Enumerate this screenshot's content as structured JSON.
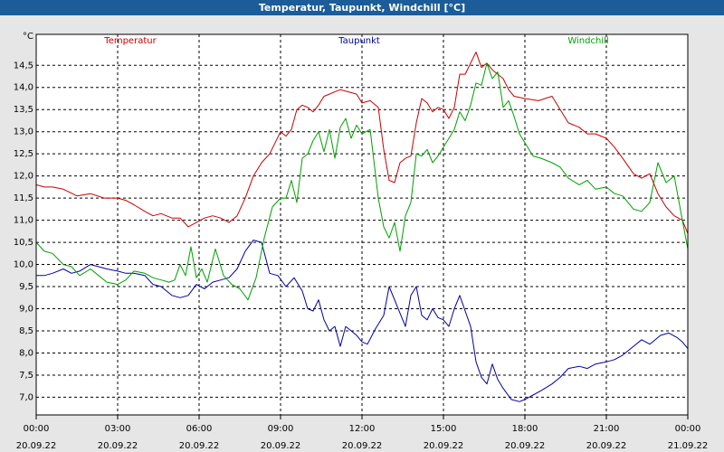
{
  "window": {
    "title": "Temperatur, Taupunkt, Windchill [°C]"
  },
  "chart_data": {
    "type": "line",
    "title": "Temperatur, Taupunkt, Windchill [°C]",
    "ylabel": "°C",
    "xlabel": "",
    "xlim": [
      0,
      24
    ],
    "ylim": [
      6.6,
      15.2
    ],
    "grid": true,
    "legend_position": "top",
    "y_ticks": [
      7.0,
      7.5,
      8.0,
      8.5,
      9.0,
      9.5,
      10.0,
      10.5,
      11.0,
      11.5,
      12.0,
      12.5,
      13.0,
      13.5,
      14.0,
      14.5
    ],
    "y_tick_labels": [
      "7,0",
      "7,5",
      "8,0",
      "8,5",
      "9,0",
      "9,5",
      "10,0",
      "10,5",
      "11,0",
      "11,5",
      "12,0",
      "12,5",
      "13,0",
      "13,5",
      "14,0",
      "14,5"
    ],
    "x_ticks": [
      0,
      3,
      6,
      9,
      12,
      15,
      18,
      21,
      24
    ],
    "x_tick_labels": [
      {
        "time": "00:00",
        "date": "20.09.22"
      },
      {
        "time": "03:00",
        "date": "20.09.22"
      },
      {
        "time": "06:00",
        "date": "20.09.22"
      },
      {
        "time": "09:00",
        "date": "20.09.22"
      },
      {
        "time": "12:00",
        "date": "20.09.22"
      },
      {
        "time": "15:00",
        "date": "20.09.22"
      },
      {
        "time": "18:00",
        "date": "20.09.22"
      },
      {
        "time": "21:00",
        "date": "20.09.22"
      },
      {
        "time": "00:00",
        "date": "21.09.22"
      }
    ],
    "series": [
      {
        "name": "Temperatur",
        "color": "#c80000",
        "x": [
          0,
          0.3,
          0.6,
          1.0,
          1.5,
          2.0,
          2.5,
          3.0,
          3.3,
          3.6,
          4.0,
          4.3,
          4.6,
          5.0,
          5.3,
          5.6,
          5.9,
          6.2,
          6.5,
          6.8,
          7.1,
          7.4,
          7.7,
          8.0,
          8.3,
          8.6,
          9.0,
          9.2,
          9.4,
          9.6,
          9.8,
          10.0,
          10.2,
          10.4,
          10.6,
          10.8,
          11.0,
          11.2,
          11.5,
          11.8,
          12.0,
          12.3,
          12.6,
          12.8,
          13.0,
          13.2,
          13.4,
          13.6,
          13.8,
          14.0,
          14.2,
          14.4,
          14.6,
          14.8,
          15.0,
          15.2,
          15.4,
          15.6,
          15.8,
          16.0,
          16.2,
          16.4,
          16.6,
          16.8,
          17.0,
          17.2,
          17.4,
          17.6,
          18.0,
          18.5,
          19.0,
          19.3,
          19.6,
          20.0,
          20.3,
          20.6,
          21.0,
          21.3,
          21.6,
          22.0,
          22.3,
          22.6,
          22.9,
          23.2,
          23.5,
          23.8,
          24.0
        ],
        "values": [
          11.8,
          11.75,
          11.75,
          11.7,
          11.55,
          11.6,
          11.5,
          11.5,
          11.45,
          11.35,
          11.2,
          11.1,
          11.15,
          11.05,
          11.05,
          10.85,
          10.95,
          11.05,
          11.1,
          11.05,
          10.95,
          11.1,
          11.5,
          12.0,
          12.3,
          12.5,
          13.0,
          12.9,
          13.05,
          13.5,
          13.6,
          13.55,
          13.45,
          13.6,
          13.8,
          13.85,
          13.9,
          13.95,
          13.9,
          13.85,
          13.65,
          13.7,
          13.55,
          12.6,
          11.9,
          11.85,
          12.3,
          12.4,
          12.45,
          13.2,
          13.75,
          13.65,
          13.45,
          13.55,
          13.5,
          13.3,
          13.55,
          14.3,
          14.3,
          14.55,
          14.8,
          14.45,
          14.55,
          14.4,
          14.3,
          14.2,
          13.95,
          13.8,
          13.75,
          13.7,
          13.8,
          13.5,
          13.2,
          13.1,
          12.95,
          12.95,
          12.85,
          12.65,
          12.4,
          12.05,
          11.95,
          12.05,
          11.6,
          11.3,
          11.1,
          11.0,
          10.7
        ]
      },
      {
        "name": "Taupunkt",
        "color": "#0000a0",
        "x": [
          0,
          0.3,
          0.6,
          1.0,
          1.3,
          1.6,
          2.0,
          2.3,
          2.6,
          3.0,
          3.3,
          3.6,
          4.0,
          4.3,
          4.6,
          5.0,
          5.3,
          5.6,
          5.9,
          6.2,
          6.5,
          6.8,
          7.1,
          7.4,
          7.7,
          8.0,
          8.3,
          8.6,
          8.9,
          9.2,
          9.5,
          9.8,
          10.0,
          10.2,
          10.4,
          10.6,
          10.8,
          11.0,
          11.2,
          11.4,
          11.6,
          11.8,
          12.0,
          12.2,
          12.5,
          12.8,
          13.0,
          13.2,
          13.4,
          13.6,
          13.8,
          14.0,
          14.2,
          14.4,
          14.6,
          14.8,
          15.0,
          15.2,
          15.4,
          15.6,
          15.8,
          16.0,
          16.2,
          16.4,
          16.6,
          16.8,
          17.0,
          17.2,
          17.5,
          17.8,
          18.0,
          18.3,
          18.6,
          19.0,
          19.3,
          19.6,
          20.0,
          20.3,
          20.6,
          21.0,
          21.3,
          21.6,
          22.0,
          22.3,
          22.6,
          23.0,
          23.3,
          23.6,
          23.8,
          24.0
        ],
        "values": [
          9.75,
          9.75,
          9.8,
          9.9,
          9.8,
          9.85,
          10.0,
          9.95,
          9.9,
          9.85,
          9.8,
          9.8,
          9.75,
          9.55,
          9.5,
          9.3,
          9.25,
          9.3,
          9.55,
          9.45,
          9.6,
          9.65,
          9.7,
          9.9,
          10.3,
          10.55,
          10.5,
          9.8,
          9.75,
          9.5,
          9.7,
          9.4,
          9.0,
          8.95,
          9.2,
          8.75,
          8.5,
          8.6,
          8.15,
          8.6,
          8.5,
          8.4,
          8.25,
          8.2,
          8.55,
          8.85,
          9.5,
          9.2,
          8.9,
          8.6,
          9.3,
          9.5,
          8.85,
          8.75,
          9.0,
          8.8,
          8.75,
          8.6,
          9.0,
          9.3,
          8.95,
          8.6,
          7.8,
          7.45,
          7.3,
          7.75,
          7.4,
          7.2,
          6.95,
          6.9,
          6.95,
          7.05,
          7.15,
          7.3,
          7.45,
          7.65,
          7.7,
          7.65,
          7.75,
          7.8,
          7.85,
          7.95,
          8.15,
          8.3,
          8.2,
          8.4,
          8.45,
          8.35,
          8.25,
          8.1
        ]
      },
      {
        "name": "Windchill",
        "color": "#00a000",
        "x": [
          0,
          0.3,
          0.6,
          1.0,
          1.3,
          1.6,
          2.0,
          2.3,
          2.6,
          3.0,
          3.3,
          3.6,
          4.0,
          4.3,
          4.6,
          4.9,
          5.1,
          5.3,
          5.5,
          5.7,
          5.9,
          6.1,
          6.3,
          6.6,
          6.9,
          7.2,
          7.5,
          7.8,
          8.1,
          8.4,
          8.7,
          9.0,
          9.2,
          9.4,
          9.6,
          9.8,
          10.0,
          10.2,
          10.4,
          10.6,
          10.8,
          11.0,
          11.2,
          11.4,
          11.6,
          11.8,
          12.0,
          12.3,
          12.6,
          12.8,
          13.0,
          13.2,
          13.4,
          13.6,
          13.8,
          14.0,
          14.2,
          14.4,
          14.6,
          14.8,
          15.0,
          15.2,
          15.4,
          15.6,
          15.8,
          16.0,
          16.2,
          16.4,
          16.6,
          16.8,
          17.0,
          17.2,
          17.4,
          17.6,
          17.8,
          18.0,
          18.3,
          18.6,
          19.0,
          19.3,
          19.6,
          20.0,
          20.3,
          20.6,
          21.0,
          21.3,
          21.6,
          22.0,
          22.3,
          22.6,
          22.9,
          23.2,
          23.5,
          23.8,
          24.0
        ],
        "values": [
          10.5,
          10.3,
          10.25,
          10.0,
          9.95,
          9.75,
          9.9,
          9.75,
          9.6,
          9.55,
          9.65,
          9.85,
          9.8,
          9.7,
          9.65,
          9.6,
          9.65,
          10.0,
          9.75,
          10.4,
          9.7,
          9.9,
          9.6,
          10.35,
          9.75,
          9.55,
          9.45,
          9.2,
          9.7,
          10.6,
          11.3,
          11.5,
          11.5,
          11.9,
          11.4,
          12.4,
          12.5,
          12.8,
          13.0,
          12.55,
          13.05,
          12.4,
          13.1,
          13.3,
          12.85,
          13.15,
          12.95,
          13.05,
          11.5,
          10.85,
          10.6,
          10.95,
          10.3,
          11.1,
          11.4,
          12.5,
          12.45,
          12.6,
          12.3,
          12.45,
          12.65,
          12.85,
          13.05,
          13.45,
          13.25,
          13.6,
          14.1,
          14.05,
          14.55,
          14.2,
          14.35,
          13.55,
          13.7,
          13.35,
          12.95,
          12.75,
          12.45,
          12.4,
          12.3,
          12.2,
          11.95,
          11.8,
          11.9,
          11.7,
          11.75,
          11.6,
          11.55,
          11.25,
          11.2,
          11.4,
          12.3,
          11.85,
          12.0,
          11.0,
          10.35
        ]
      }
    ]
  }
}
